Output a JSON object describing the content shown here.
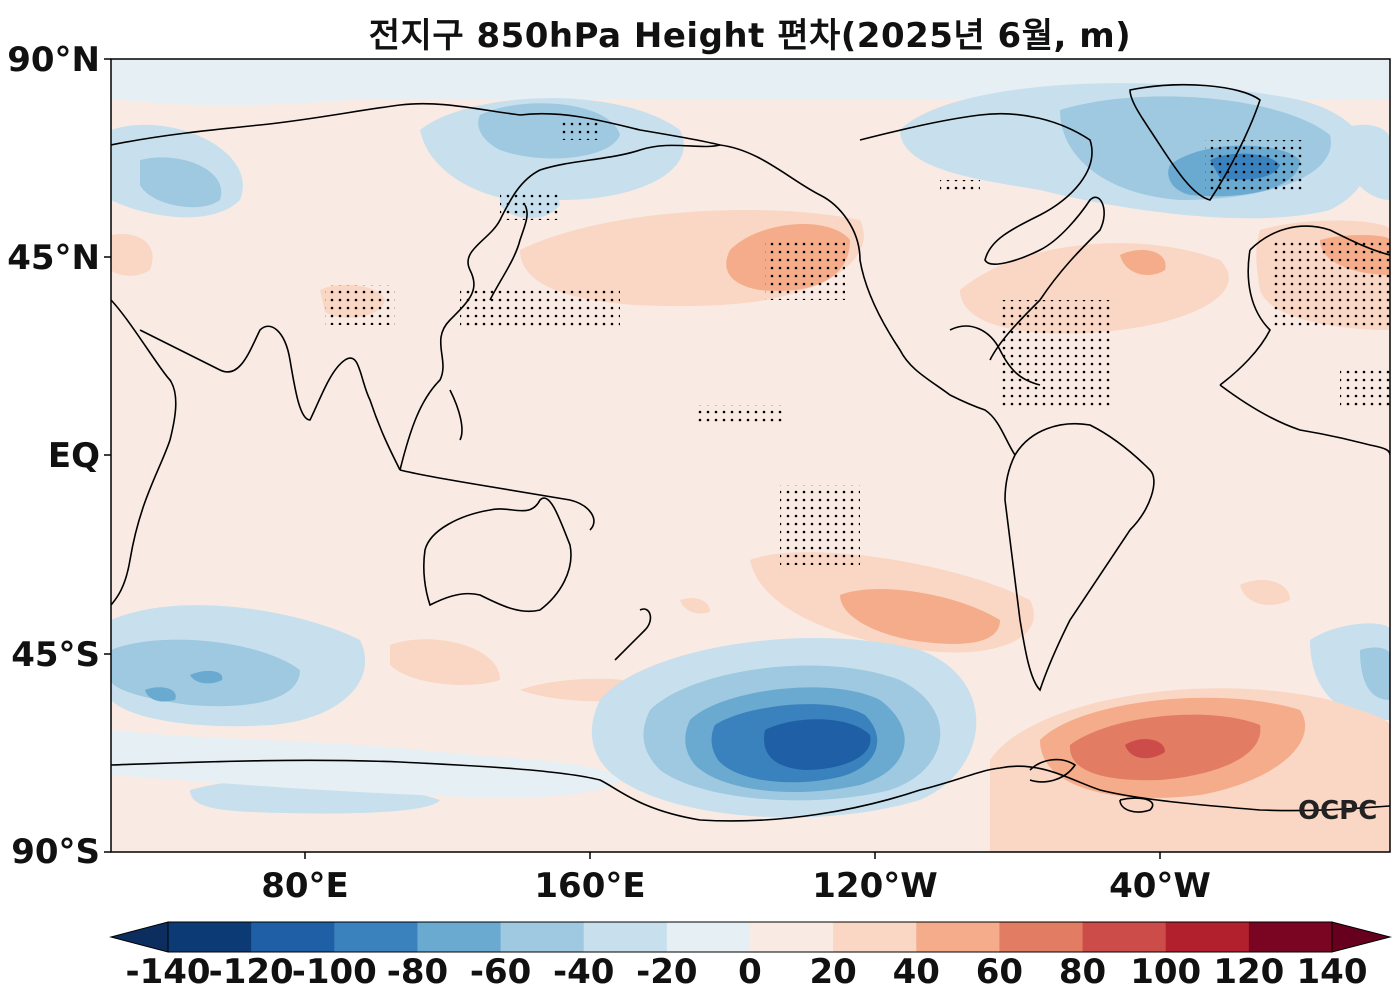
{
  "title": "전지구 850hPa Height 편차(2025년 6월, m)",
  "watermark": "OCPC",
  "lat_labels": [
    "90°N",
    "45°N",
    "EQ",
    "45°S",
    "90°S"
  ],
  "lon_labels": [
    "80°E",
    "160°E",
    "120°W",
    "40°W"
  ],
  "colorbar": {
    "ticks": [
      "-140",
      "-120",
      "-100",
      "-80",
      "-60",
      "-40",
      "-20",
      "0",
      "20",
      "40",
      "60",
      "80",
      "100",
      "120",
      "140"
    ],
    "colors": [
      "#0b3a74",
      "#1f5fa6",
      "#3a82be",
      "#6aa9d0",
      "#9fc9e0",
      "#c8e0ed",
      "#e6eff4",
      "#f9ebe3",
      "#fad6c4",
      "#f4ac8a",
      "#e27c63",
      "#cc4c4a",
      "#b2202e",
      "#7a0522"
    ],
    "extend_low": "#0b2e5e",
    "extend_high": "#67001f"
  }
}
